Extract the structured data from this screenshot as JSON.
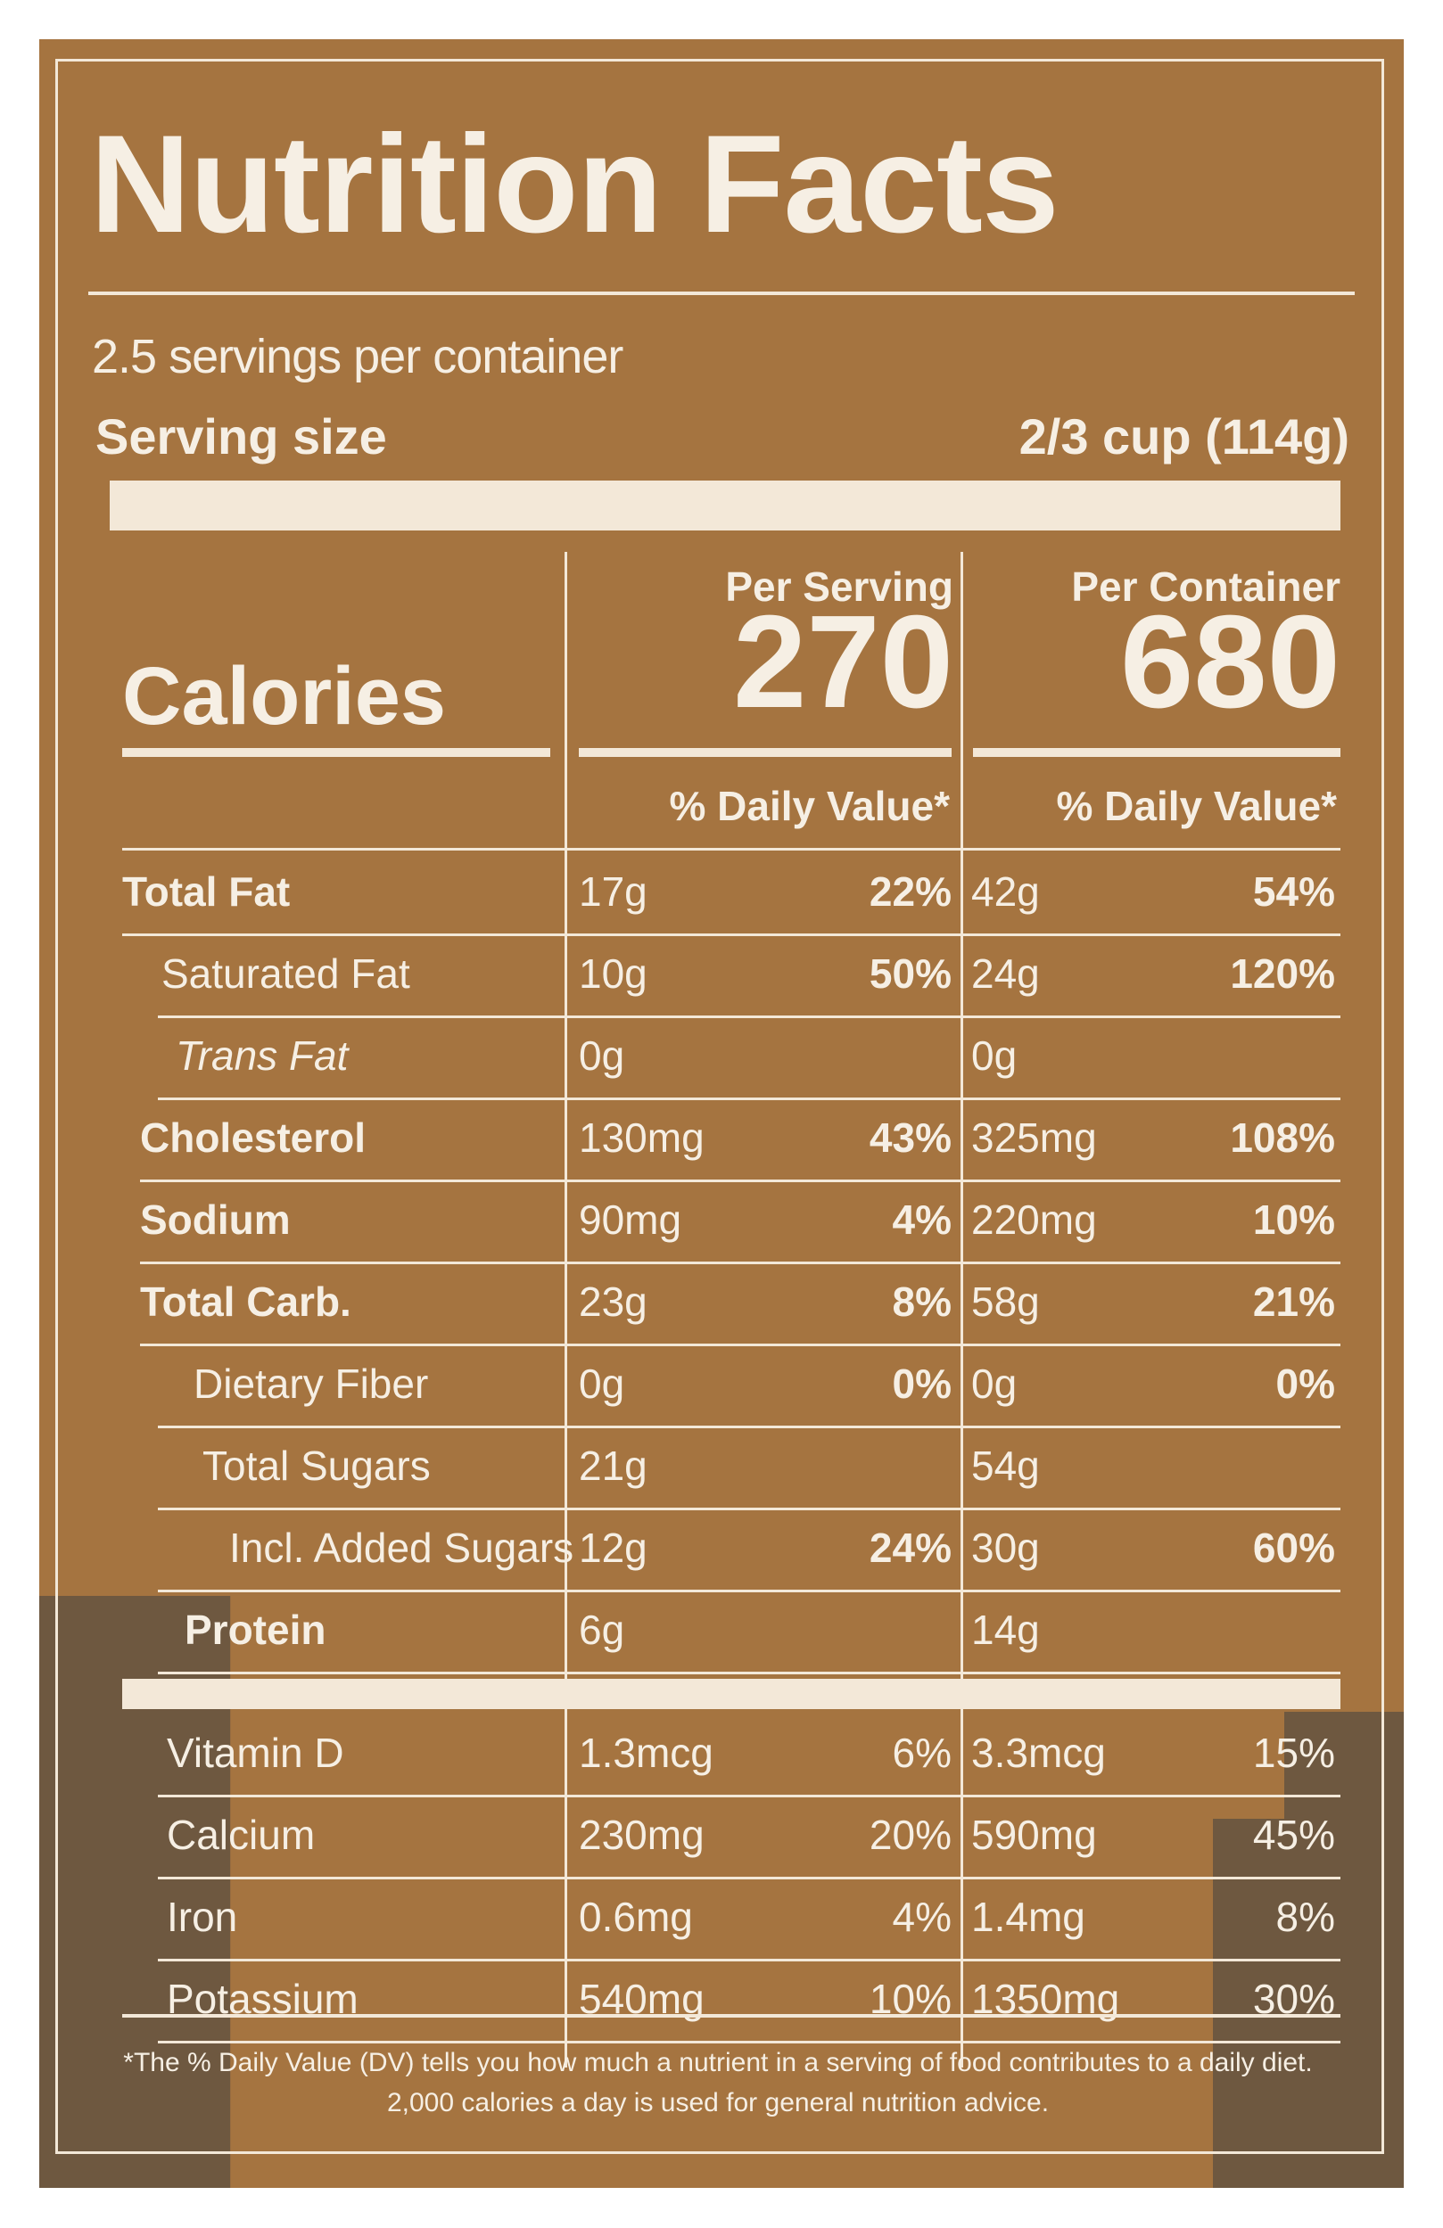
{
  "panel": {
    "title": "Nutrition Facts",
    "servings_per_container": "2.5 servings per container",
    "serving_size_label": "Serving size",
    "serving_size_value": "2/3 cup (114g)"
  },
  "calories": {
    "label": "Calories",
    "col1_header": "Per Serving",
    "col2_header": "Per Container",
    "per_serving": "270",
    "per_container": "680",
    "dv_header_1": "% Daily Value*",
    "dv_header_2": "% Daily Value*"
  },
  "nutrients": [
    {
      "label": "Total Fat",
      "serving_amt": "17g",
      "serving_pct": "22%",
      "container_amt": "42g",
      "container_pct": "54%"
    },
    {
      "label": "Saturated Fat",
      "serving_amt": "10g",
      "serving_pct": "50%",
      "container_amt": "24g",
      "container_pct": "120%"
    },
    {
      "label": "Trans Fat",
      "serving_amt": "0g",
      "serving_pct": "",
      "container_amt": "0g",
      "container_pct": ""
    },
    {
      "label": "Cholesterol",
      "serving_amt": "130mg",
      "serving_pct": "43%",
      "container_amt": "325mg",
      "container_pct": "108%"
    },
    {
      "label": "Sodium",
      "serving_amt": "90mg",
      "serving_pct": "4%",
      "container_amt": "220mg",
      "container_pct": "10%"
    },
    {
      "label": "Total Carb.",
      "serving_amt": "23g",
      "serving_pct": "8%",
      "container_amt": "58g",
      "container_pct": "21%"
    },
    {
      "label": "Dietary Fiber",
      "serving_amt": "0g",
      "serving_pct": "0%",
      "container_amt": "0g",
      "container_pct": "0%"
    },
    {
      "label": "Total Sugars",
      "serving_amt": "21g",
      "serving_pct": "",
      "container_amt": "54g",
      "container_pct": ""
    },
    {
      "label": "Incl. Added Sugars",
      "serving_amt": "12g",
      "serving_pct": "24%",
      "container_amt": "30g",
      "container_pct": "60%"
    },
    {
      "label": "Protein",
      "serving_amt": "6g",
      "serving_pct": "",
      "container_amt": "14g",
      "container_pct": ""
    }
  ],
  "vitamins": [
    {
      "label": "Vitamin D",
      "serving_amt": "1.3mcg",
      "serving_pct": "6%",
      "container_amt": "3.3mcg",
      "container_pct": "15%"
    },
    {
      "label": "Calcium",
      "serving_amt": "230mg",
      "serving_pct": "20%",
      "container_amt": "590mg",
      "container_pct": "45%"
    },
    {
      "label": "Iron",
      "serving_amt": "0.6mg",
      "serving_pct": "4%",
      "container_amt": "1.4mg",
      "container_pct": "8%"
    },
    {
      "label": "Potassium",
      "serving_amt": "540mg",
      "serving_pct": "10%",
      "container_amt": "1350mg",
      "container_pct": "30%"
    }
  ],
  "footnote": "*The % Daily Value (DV) tells you how much a nutrient in a serving of food contributes to a daily diet. 2,000 calories a day is used for general nutrition advice."
}
